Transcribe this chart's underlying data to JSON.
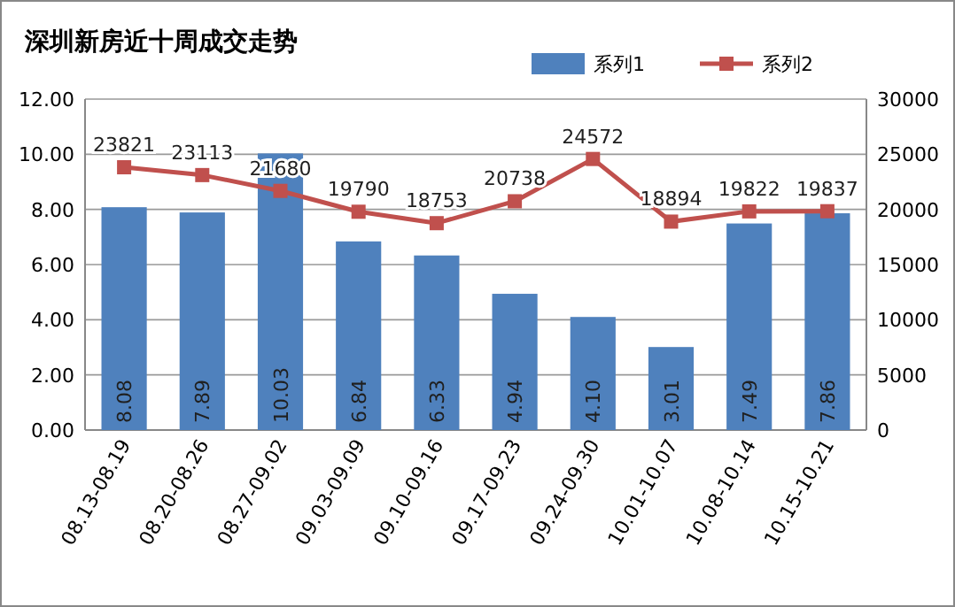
{
  "chart_data": {
    "type": "bar",
    "title": "深圳新房近十周成交走势",
    "categories": [
      "08.13-08.19",
      "08.20-08.26",
      "08.27-09.02",
      "09.03-09.09",
      "09.10-09.16",
      "09.17-09.23",
      "09.24-09.30",
      "10.01-10.07",
      "10.08-10.14",
      "10.15-10.21"
    ],
    "series": [
      {
        "name": "系列1",
        "color": "#4f81bd",
        "values": [
          8.08,
          7.89,
          10.03,
          6.84,
          6.33,
          4.94,
          4.1,
          3.01,
          7.49,
          7.86
        ],
        "value_labels": [
          "8.08",
          "7.89",
          "10.03",
          "6.84",
          "6.33",
          "4.94",
          "4.10",
          "3.01",
          "7.49",
          "7.86"
        ]
      },
      {
        "name": "系列2",
        "type": "line",
        "axis": "y2",
        "color": "#c0504d",
        "marker": "square",
        "values": [
          23821,
          23113,
          21680,
          19790,
          18753,
          20738,
          24572,
          18894,
          19822,
          19837
        ],
        "value_labels": [
          "23821",
          "23113",
          "21680",
          "19790",
          "18753",
          "20738",
          "24572",
          "18894",
          "19822",
          "19837"
        ]
      }
    ],
    "ylim": [
      0,
      12
    ],
    "yticks": [
      {
        "value": 0,
        "label": "0.00"
      },
      {
        "value": 2,
        "label": "2.00"
      },
      {
        "value": 4,
        "label": "4.00"
      },
      {
        "value": 6,
        "label": "6.00"
      },
      {
        "value": 8,
        "label": "8.00"
      },
      {
        "value": 10,
        "label": "10.00"
      },
      {
        "value": 12,
        "label": "12.00"
      }
    ],
    "y2lim": [
      0,
      30000
    ],
    "y2ticks": [
      0,
      5000,
      10000,
      15000,
      20000,
      25000,
      30000
    ],
    "grid": "y",
    "legend": "top right"
  }
}
